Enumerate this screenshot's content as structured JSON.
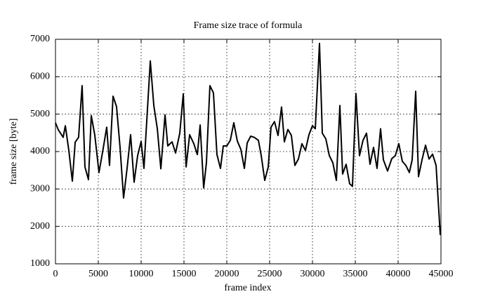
{
  "chart_data": {
    "type": "line",
    "title": "Frame size trace of formula",
    "x_label": "frame index",
    "y_label": "frame size [byte]",
    "xlim": [
      0,
      45000
    ],
    "ylim": [
      1000,
      7000
    ],
    "xticks": [
      0,
      5000,
      10000,
      15000,
      20000,
      25000,
      30000,
      35000,
      40000,
      45000
    ],
    "yticks": [
      1000,
      2000,
      3000,
      4000,
      5000,
      6000,
      7000
    ],
    "grid": true,
    "series": [
      {
        "color": "#000000",
        "x": [
          0,
          330,
          900,
          1150,
          1560,
          1970,
          2300,
          2700,
          3110,
          3440,
          3850,
          4180,
          4590,
          5080,
          5570,
          5980,
          6310,
          6720,
          7130,
          7540,
          7950,
          8360,
          8770,
          9180,
          9590,
          10000,
          10330,
          10740,
          11070,
          11480,
          11890,
          12300,
          12790,
          13110,
          13610,
          14020,
          14510,
          14920,
          15250,
          15660,
          16150,
          16560,
          16890,
          17300,
          17620,
          18030,
          18440,
          18850,
          19260,
          19590,
          20000,
          20410,
          20820,
          21230,
          21640,
          22050,
          22380,
          22790,
          23200,
          23690,
          24020,
          24430,
          24840,
          25160,
          25570,
          25980,
          26390,
          26720,
          27130,
          27540,
          27950,
          28360,
          28770,
          29180,
          29590,
          30000,
          30330,
          30820,
          31150,
          31560,
          31970,
          32380,
          32790,
          33200,
          33520,
          33930,
          34340,
          34670,
          35080,
          35490,
          35900,
          36310,
          36720,
          37130,
          37540,
          37950,
          38280,
          38770,
          39260,
          39670,
          40080,
          40490,
          40900,
          41310,
          41640,
          42050,
          42380,
          42790,
          43200,
          43610,
          44020,
          44430,
          44920
        ],
        "values": [
          4770,
          4580,
          4380,
          4690,
          4030,
          3210,
          4250,
          4380,
          5760,
          3590,
          3250,
          4960,
          4440,
          3440,
          4080,
          4650,
          3630,
          5480,
          5200,
          4110,
          2760,
          3550,
          4450,
          3180,
          3890,
          4270,
          3550,
          5140,
          6420,
          5230,
          4610,
          3540,
          4980,
          4150,
          4260,
          3960,
          4490,
          5540,
          3590,
          4450,
          4210,
          3920,
          4710,
          3030,
          3700,
          5760,
          5570,
          3920,
          3550,
          4150,
          4150,
          4300,
          4770,
          4280,
          4060,
          3550,
          4230,
          4410,
          4380,
          4300,
          3890,
          3230,
          3590,
          4650,
          4800,
          4430,
          5190,
          4260,
          4590,
          4430,
          3630,
          3800,
          4210,
          4030,
          4450,
          4690,
          4610,
          6890,
          4490,
          4340,
          3890,
          3700,
          3230,
          5230,
          3400,
          3660,
          3140,
          3070,
          5550,
          3890,
          4300,
          4490,
          3660,
          4110,
          3550,
          4610,
          3780,
          3480,
          3810,
          3890,
          4210,
          3740,
          3630,
          3440,
          3780,
          5610,
          3330,
          3780,
          4170,
          3800,
          3930,
          3630,
          1770
        ]
      }
    ]
  }
}
